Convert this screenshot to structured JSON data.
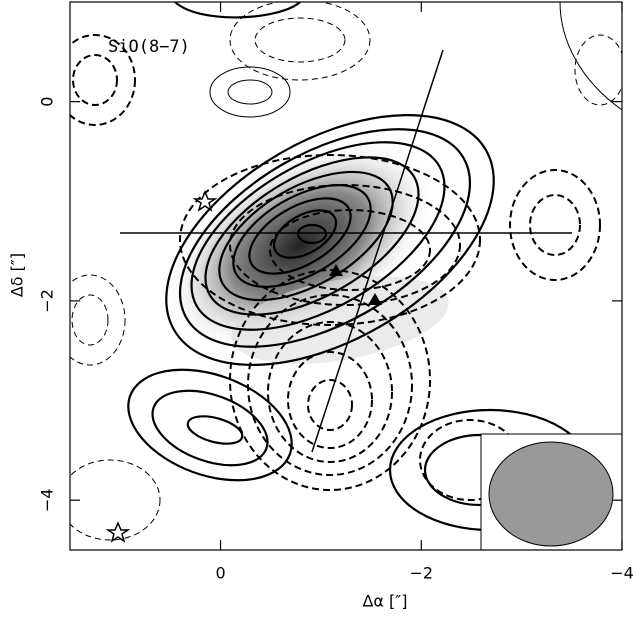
{
  "chart_data": {
    "type": "contour",
    "title": "SiO(8−7)",
    "x_label": "Δα [″]",
    "y_label": "Δδ [″]",
    "xlim": [
      1.5,
      -4
    ],
    "ylim": [
      -4.5,
      1.0
    ],
    "xticks": [
      0,
      {
        "value": -2,
        "label": "−2"
      },
      {
        "value": -4,
        "label": "−4"
      }
    ],
    "yticks": [
      0,
      {
        "value": -2,
        "label": "−2"
      },
      {
        "value": -4,
        "label": "−4"
      }
    ]
  }
}
